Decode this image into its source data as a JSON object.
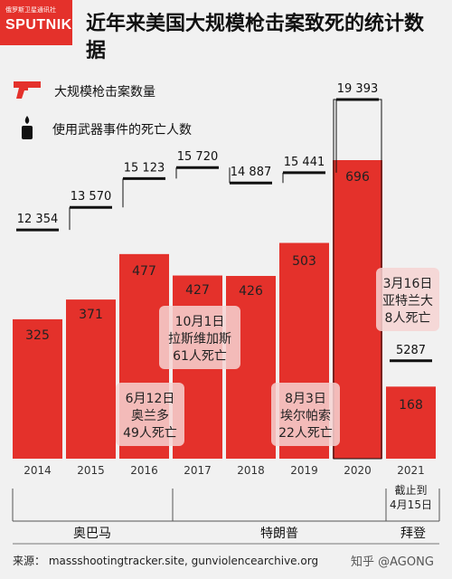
{
  "header": {
    "badge_top": "俄罗斯卫星通讯社",
    "badge_main": "SPUTNIK",
    "title": "近年来美国大规模枪击案致死的统计数据"
  },
  "legend": {
    "shootings_label": "大规模枪击案数量",
    "deaths_label": "使用武器事件的死亡人数"
  },
  "colors": {
    "bar": "#e4312b",
    "line": "#111111",
    "background": "#f1f1f1"
  },
  "chart_data": {
    "type": "bar",
    "categories": [
      "2014",
      "2015",
      "2016",
      "2017",
      "2018",
      "2019",
      "2020",
      "2021"
    ],
    "series": [
      {
        "name": "大规模枪击案数量",
        "values": [
          325,
          371,
          477,
          427,
          426,
          503,
          696,
          168
        ]
      },
      {
        "name": "使用武器事件的死亡人数",
        "values": [
          12354,
          13570,
          15123,
          15720,
          14887,
          15441,
          19393,
          5287
        ]
      }
    ],
    "value_labels_shootings": [
      "325",
      "371",
      "477",
      "427",
      "426",
      "503",
      "696",
      "168"
    ],
    "value_labels_deaths": [
      "12 354",
      "13 570",
      "15 123",
      "15 720",
      "14 887",
      "15 441",
      "19 393",
      "5287"
    ],
    "ylim_shootings": [
      0,
      700
    ],
    "ylim_deaths": [
      0,
      20000
    ],
    "annotations": [
      {
        "category": "2016",
        "lines": [
          "6月12日",
          "奥兰多",
          "49人死亡"
        ]
      },
      {
        "category": "2017",
        "lines": [
          "10月1日",
          "拉斯维加斯",
          "61人死亡"
        ]
      },
      {
        "category": "2019",
        "lines": [
          "8月3日",
          "埃尔帕索",
          "22人死亡"
        ]
      },
      {
        "category": "2021",
        "lines": [
          "3月16日",
          "亚特兰大",
          "8人死亡"
        ]
      }
    ],
    "note_2021": [
      "截止到",
      "4月15日"
    ],
    "presidents": [
      {
        "name": "奥巴马",
        "from": "2014",
        "to": "2016"
      },
      {
        "name": "特朗普",
        "from": "2017",
        "to": "2020"
      },
      {
        "name": "拜登",
        "from": "2021",
        "to": "2021"
      }
    ]
  },
  "footer": {
    "source": "来源： massshootingtracker.site, gunviolencearchive.org",
    "watermark": "知乎 @AGONG"
  }
}
